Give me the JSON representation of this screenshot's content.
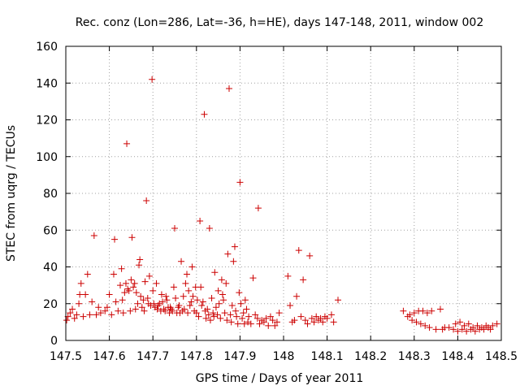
{
  "chart_data": {
    "type": "scatter",
    "title": "Rec. conz (Lon=286, Lat=-36, h=HE), days 147-148, 2011, window 002",
    "xlabel": "GPS time / Days of year 2011",
    "ylabel": "STEC from uqrg / TECUs",
    "xlim": [
      147.5,
      148.5
    ],
    "ylim": [
      0,
      160
    ],
    "xticks": [
      147.5,
      147.6,
      147.7,
      147.8,
      147.9,
      148.0,
      148.1,
      148.2,
      148.3,
      148.4,
      148.5
    ],
    "xtick_labels": [
      "147.5",
      "147.6",
      "147.7",
      "147.8",
      "147.9",
      "148",
      "148.1",
      "148.2",
      "148.3",
      "148.4",
      "148.5"
    ],
    "yticks": [
      0,
      20,
      40,
      60,
      80,
      100,
      120,
      140,
      160
    ],
    "ytick_labels": [
      "0",
      "20",
      "40",
      "60",
      "80",
      "100",
      "120",
      "140",
      "160"
    ],
    "grid": true,
    "marker": "+",
    "color": "#cc0000",
    "series": [
      {
        "name": "STEC",
        "points": [
          [
            147.502,
            11
          ],
          [
            147.505,
            13
          ],
          [
            147.51,
            15
          ],
          [
            147.515,
            17
          ],
          [
            147.52,
            12
          ],
          [
            147.525,
            14
          ],
          [
            147.53,
            20
          ],
          [
            147.532,
            25
          ],
          [
            147.535,
            31
          ],
          [
            147.54,
            13
          ],
          [
            147.545,
            25
          ],
          [
            147.55,
            36
          ],
          [
            147.555,
            14
          ],
          [
            147.56,
            21
          ],
          [
            147.565,
            57
          ],
          [
            147.57,
            14
          ],
          [
            147.575,
            18
          ],
          [
            147.58,
            15
          ],
          [
            147.59,
            16
          ],
          [
            147.595,
            18
          ],
          [
            147.6,
            25
          ],
          [
            147.605,
            14
          ],
          [
            147.61,
            36
          ],
          [
            147.612,
            55
          ],
          [
            147.615,
            21
          ],
          [
            147.62,
            16
          ],
          [
            147.625,
            30
          ],
          [
            147.628,
            39
          ],
          [
            147.63,
            22
          ],
          [
            147.632,
            15
          ],
          [
            147.635,
            26
          ],
          [
            147.638,
            31
          ],
          [
            147.64,
            107
          ],
          [
            147.642,
            28
          ],
          [
            147.645,
            27
          ],
          [
            147.648,
            16
          ],
          [
            147.65,
            33
          ],
          [
            147.652,
            56
          ],
          [
            147.655,
            29
          ],
          [
            147.658,
            31
          ],
          [
            147.66,
            17
          ],
          [
            147.662,
            26
          ],
          [
            147.665,
            20
          ],
          [
            147.668,
            41
          ],
          [
            147.67,
            44
          ],
          [
            147.672,
            24
          ],
          [
            147.675,
            18
          ],
          [
            147.678,
            22
          ],
          [
            147.68,
            16
          ],
          [
            147.682,
            32
          ],
          [
            147.685,
            76
          ],
          [
            147.688,
            23
          ],
          [
            147.69,
            20
          ],
          [
            147.692,
            35
          ],
          [
            147.695,
            19
          ],
          [
            147.698,
            142
          ],
          [
            147.7,
            27
          ],
          [
            147.702,
            20
          ],
          [
            147.705,
            18
          ],
          [
            147.708,
            31
          ],
          [
            147.71,
            17
          ],
          [
            147.712,
            19
          ],
          [
            147.715,
            20
          ],
          [
            147.718,
            16
          ],
          [
            147.72,
            25
          ],
          [
            147.722,
            21
          ],
          [
            147.725,
            17
          ],
          [
            147.728,
            16
          ],
          [
            147.73,
            24
          ],
          [
            147.732,
            22
          ],
          [
            147.735,
            18
          ],
          [
            147.738,
            15
          ],
          [
            147.74,
            18
          ],
          [
            147.742,
            17
          ],
          [
            147.745,
            16
          ],
          [
            147.748,
            29
          ],
          [
            147.75,
            61
          ],
          [
            147.752,
            23
          ],
          [
            147.755,
            15
          ],
          [
            147.758,
            18
          ],
          [
            147.76,
            19
          ],
          [
            147.762,
            15
          ],
          [
            147.765,
            43
          ],
          [
            147.768,
            16
          ],
          [
            147.77,
            24
          ],
          [
            147.772,
            17
          ],
          [
            147.775,
            31
          ],
          [
            147.778,
            36
          ],
          [
            147.78,
            15
          ],
          [
            147.782,
            27
          ],
          [
            147.785,
            19
          ],
          [
            147.788,
            21
          ],
          [
            147.79,
            40
          ],
          [
            147.792,
            24
          ],
          [
            147.795,
            16
          ],
          [
            147.798,
            29
          ],
          [
            147.8,
            15
          ],
          [
            147.802,
            22
          ],
          [
            147.805,
            13
          ],
          [
            147.808,
            65
          ],
          [
            147.81,
            29
          ],
          [
            147.812,
            19
          ],
          [
            147.815,
            21
          ],
          [
            147.818,
            123
          ],
          [
            147.82,
            16
          ],
          [
            147.822,
            12
          ],
          [
            147.825,
            17
          ],
          [
            147.828,
            14
          ],
          [
            147.83,
            61
          ],
          [
            147.832,
            11
          ],
          [
            147.835,
            23
          ],
          [
            147.838,
            15
          ],
          [
            147.84,
            13
          ],
          [
            147.842,
            37
          ],
          [
            147.845,
            18
          ],
          [
            147.848,
            14
          ],
          [
            147.85,
            27
          ],
          [
            147.852,
            20
          ],
          [
            147.855,
            12
          ],
          [
            147.858,
            33
          ],
          [
            147.86,
            25
          ],
          [
            147.862,
            22
          ],
          [
            147.865,
            15
          ],
          [
            147.868,
            31
          ],
          [
            147.87,
            11
          ],
          [
            147.872,
            47
          ],
          [
            147.875,
            137
          ],
          [
            147.878,
            14
          ],
          [
            147.88,
            10
          ],
          [
            147.882,
            19
          ],
          [
            147.885,
            43
          ],
          [
            147.888,
            51
          ],
          [
            147.89,
            16
          ],
          [
            147.892,
            13
          ],
          [
            147.895,
            9
          ],
          [
            147.898,
            26
          ],
          [
            147.9,
            86
          ],
          [
            147.902,
            20
          ],
          [
            147.905,
            12
          ],
          [
            147.908,
            15
          ],
          [
            147.91,
            9
          ],
          [
            147.912,
            22
          ],
          [
            147.915,
            17
          ],
          [
            147.918,
            10
          ],
          [
            147.92,
            13
          ],
          [
            147.925,
            9
          ],
          [
            147.93,
            34
          ],
          [
            147.935,
            14
          ],
          [
            147.94,
            12
          ],
          [
            147.942,
            72
          ],
          [
            147.945,
            9
          ],
          [
            147.95,
            11
          ],
          [
            147.955,
            10
          ],
          [
            147.96,
            12
          ],
          [
            147.965,
            8
          ],
          [
            147.97,
            13
          ],
          [
            147.975,
            11
          ],
          [
            147.98,
            8
          ],
          [
            147.985,
            10
          ],
          [
            147.99,
            15
          ],
          [
            148.01,
            35
          ],
          [
            148.015,
            19
          ],
          [
            148.02,
            10
          ],
          [
            148.025,
            11
          ],
          [
            148.03,
            24
          ],
          [
            148.035,
            49
          ],
          [
            148.04,
            13
          ],
          [
            148.045,
            33
          ],
          [
            148.05,
            11
          ],
          [
            148.055,
            9
          ],
          [
            148.06,
            46
          ],
          [
            148.065,
            12
          ],
          [
            148.07,
            10
          ],
          [
            148.075,
            13
          ],
          [
            148.08,
            11
          ],
          [
            148.085,
            12
          ],
          [
            148.09,
            10
          ],
          [
            148.095,
            13
          ],
          [
            148.1,
            12
          ],
          [
            148.11,
            14
          ],
          [
            148.115,
            10
          ],
          [
            148.125,
            22
          ],
          [
            148.275,
            16
          ],
          [
            148.285,
            13
          ],
          [
            148.29,
            14
          ],
          [
            148.295,
            11
          ],
          [
            148.3,
            15
          ],
          [
            148.305,
            10
          ],
          [
            148.31,
            16
          ],
          [
            148.315,
            9
          ],
          [
            148.32,
            16
          ],
          [
            148.325,
            8
          ],
          [
            148.33,
            15
          ],
          [
            148.335,
            7
          ],
          [
            148.34,
            16
          ],
          [
            148.35,
            6
          ],
          [
            148.36,
            17
          ],
          [
            148.365,
            6
          ],
          [
            148.37,
            7
          ],
          [
            148.38,
            7
          ],
          [
            148.39,
            6
          ],
          [
            148.395,
            9
          ],
          [
            148.4,
            5
          ],
          [
            148.405,
            10
          ],
          [
            148.41,
            6
          ],
          [
            148.415,
            8
          ],
          [
            148.42,
            5
          ],
          [
            148.425,
            9
          ],
          [
            148.43,
            6
          ],
          [
            148.435,
            7
          ],
          [
            148.44,
            5
          ],
          [
            148.445,
            8
          ],
          [
            148.45,
            6
          ],
          [
            148.455,
            7
          ],
          [
            148.46,
            6
          ],
          [
            148.465,
            8
          ],
          [
            148.47,
            7
          ],
          [
            148.475,
            6
          ],
          [
            148.48,
            8
          ],
          [
            148.49,
            9
          ]
        ]
      }
    ]
  }
}
